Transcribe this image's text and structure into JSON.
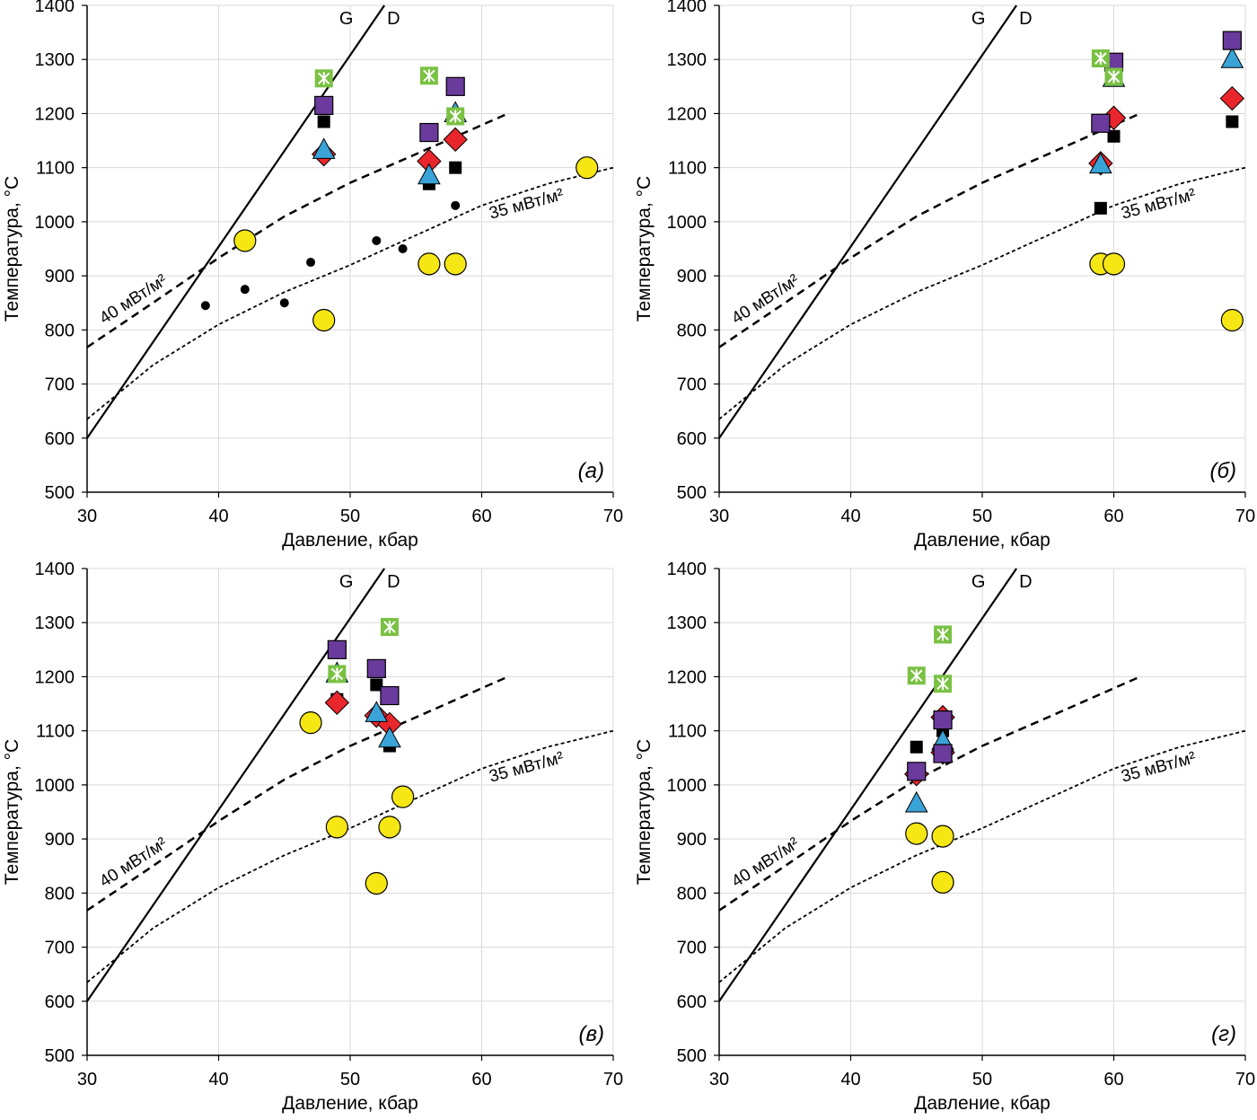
{
  "figure": {
    "xlabel": "Давление, кбар",
    "ylabel": "Температура, °С",
    "xlim": [
      30,
      70
    ],
    "ylim": [
      500,
      1400
    ],
    "xticks": [
      "30",
      "40",
      "50",
      "60",
      "70"
    ],
    "yticks": [
      "500",
      "600",
      "700",
      "800",
      "900",
      "1000",
      "1100",
      "1200",
      "1300",
      "1400"
    ],
    "grid": true
  },
  "chart_data": [
    {
      "type": "scatter",
      "panel_label": "(а)",
      "xlabel": "Давление, кбар",
      "ylabel": "Температура, °С",
      "xlim": [
        30,
        70
      ],
      "ylim": [
        500,
        1400
      ],
      "grid": true,
      "reference_lines": [
        {
          "label_g": "G",
          "label_d": "D",
          "style": "solid",
          "points": [
            [
              30,
              600
            ],
            [
              52.6,
              1400
            ]
          ]
        },
        {
          "label": "40 мВт/м²",
          "style": "dashed",
          "points": [
            [
              30,
              768
            ],
            [
              35,
              850
            ],
            [
              40,
              933
            ],
            [
              45,
              1010
            ],
            [
              50,
              1072
            ],
            [
              55,
              1125
            ],
            [
              62,
              1200
            ]
          ]
        },
        {
          "label": "35 мВт/м²",
          "style": "dotted",
          "points": [
            [
              30,
              635
            ],
            [
              35,
              735
            ],
            [
              40,
              810
            ],
            [
              45,
              870
            ],
            [
              50,
              920
            ],
            [
              55,
              975
            ],
            [
              60,
              1030
            ],
            [
              65,
              1070
            ],
            [
              70,
              1100
            ]
          ]
        }
      ],
      "series": [
        {
          "marker": "circle-yellow",
          "color": "#f5e614",
          "values": [
            [
              42,
              965
            ],
            [
              48,
              818
            ],
            [
              56,
              922
            ],
            [
              58,
              922
            ],
            [
              68,
              1100
            ]
          ]
        },
        {
          "marker": "dot-black",
          "color": "#000000",
          "values": [
            [
              39,
              845
            ],
            [
              42,
              875
            ],
            [
              45,
              850
            ],
            [
              47,
              925
            ],
            [
              52,
              965
            ],
            [
              54,
              950
            ],
            [
              58,
              1030
            ]
          ]
        },
        {
          "marker": "square-black",
          "color": "#000000",
          "values": [
            [
              48,
              1185
            ],
            [
              56,
              1070
            ],
            [
              58,
              1100
            ]
          ]
        },
        {
          "marker": "diamond-red",
          "color": "#e8262b",
          "values": [
            [
              48,
              1125
            ],
            [
              56,
              1112
            ],
            [
              58,
              1152
            ]
          ]
        },
        {
          "marker": "triangle-blue",
          "color": "#3aa3d8",
          "values": [
            [
              48,
              1132
            ],
            [
              56,
              1085
            ],
            [
              58,
              1200
            ]
          ]
        },
        {
          "marker": "square-purple",
          "color": "#6a3a9c",
          "values": [
            [
              48,
              1215
            ],
            [
              56,
              1165
            ],
            [
              58,
              1250
            ]
          ]
        },
        {
          "marker": "square-green-x",
          "color": "#7ac143",
          "values": [
            [
              48,
              1265
            ],
            [
              56,
              1270
            ],
            [
              58,
              1195
            ]
          ]
        }
      ]
    },
    {
      "type": "scatter",
      "panel_label": "(б)",
      "xlabel": "Давление, кбар",
      "ylabel": "Температура, °С",
      "xlim": [
        30,
        70
      ],
      "ylim": [
        500,
        1400
      ],
      "grid": true,
      "reference_lines": [
        {
          "label_g": "G",
          "label_d": "D",
          "style": "solid",
          "points": [
            [
              30,
              600
            ],
            [
              52.6,
              1400
            ]
          ]
        },
        {
          "label": "40 мВт/м²",
          "style": "dashed",
          "points": [
            [
              30,
              768
            ],
            [
              35,
              850
            ],
            [
              40,
              933
            ],
            [
              45,
              1010
            ],
            [
              50,
              1072
            ],
            [
              55,
              1125
            ],
            [
              62,
              1200
            ]
          ]
        },
        {
          "label": "35 мВт/м²",
          "style": "dotted",
          "points": [
            [
              30,
              635
            ],
            [
              35,
              735
            ],
            [
              40,
              810
            ],
            [
              45,
              870
            ],
            [
              50,
              920
            ],
            [
              55,
              975
            ],
            [
              60,
              1030
            ],
            [
              65,
              1070
            ],
            [
              70,
              1100
            ]
          ]
        }
      ],
      "series": [
        {
          "marker": "circle-yellow",
          "color": "#f5e614",
          "values": [
            [
              59,
              922
            ],
            [
              60,
              922
            ],
            [
              69,
              818
            ]
          ]
        },
        {
          "marker": "square-black",
          "color": "#000000",
          "values": [
            [
              59,
              1025
            ],
            [
              60,
              1158
            ],
            [
              69,
              1185
            ]
          ]
        },
        {
          "marker": "diamond-red",
          "color": "#e8262b",
          "values": [
            [
              59,
              1108
            ],
            [
              60,
              1192
            ],
            [
              69,
              1228
            ]
          ]
        },
        {
          "marker": "triangle-blue",
          "color": "#3aa3d8",
          "values": [
            [
              59,
              1105
            ],
            [
              60,
              1265
            ],
            [
              69,
              1300
            ]
          ]
        },
        {
          "marker": "square-purple",
          "color": "#6a3a9c",
          "values": [
            [
              59,
              1182
            ],
            [
              60,
              1295
            ],
            [
              69,
              1335
            ]
          ]
        },
        {
          "marker": "square-green-x",
          "color": "#7ac143",
          "values": [
            [
              59,
              1302
            ],
            [
              60,
              1268
            ]
          ]
        }
      ]
    },
    {
      "type": "scatter",
      "panel_label": "(в)",
      "xlabel": "Давление, кбар",
      "ylabel": "Температура, °С",
      "xlim": [
        30,
        70
      ],
      "ylim": [
        500,
        1400
      ],
      "grid": true,
      "reference_lines": [
        {
          "label_g": "G",
          "label_d": "D",
          "style": "solid",
          "points": [
            [
              30,
              600
            ],
            [
              52.6,
              1400
            ]
          ]
        },
        {
          "label": "40 мВт/м²",
          "style": "dashed",
          "points": [
            [
              30,
              768
            ],
            [
              35,
              850
            ],
            [
              40,
              933
            ],
            [
              45,
              1010
            ],
            [
              50,
              1072
            ],
            [
              55,
              1125
            ],
            [
              62,
              1200
            ]
          ]
        },
        {
          "label": "35 мВт/м²",
          "style": "dotted",
          "points": [
            [
              30,
              635
            ],
            [
              35,
              735
            ],
            [
              40,
              810
            ],
            [
              45,
              870
            ],
            [
              50,
              920
            ],
            [
              55,
              975
            ],
            [
              60,
              1030
            ],
            [
              65,
              1070
            ],
            [
              70,
              1100
            ]
          ]
        }
      ],
      "series": [
        {
          "marker": "circle-yellow",
          "color": "#f5e614",
          "values": [
            [
              47,
              1115
            ],
            [
              49,
              922
            ],
            [
              52,
              818
            ],
            [
              53,
              922
            ],
            [
              54,
              978
            ]
          ]
        },
        {
          "marker": "square-black",
          "color": "#000000",
          "values": [
            [
              49,
              1158
            ],
            [
              52,
              1185
            ],
            [
              53,
              1072
            ]
          ]
        },
        {
          "marker": "diamond-red",
          "color": "#e8262b",
          "values": [
            [
              49,
              1152
            ],
            [
              52,
              1128
            ],
            [
              53,
              1112
            ]
          ]
        },
        {
          "marker": "triangle-blue",
          "color": "#3aa3d8",
          "values": [
            [
              49,
              1205
            ],
            [
              52,
              1132
            ],
            [
              53,
              1085
            ]
          ]
        },
        {
          "marker": "square-purple",
          "color": "#6a3a9c",
          "values": [
            [
              49,
              1250
            ],
            [
              52,
              1215
            ],
            [
              53,
              1165
            ]
          ]
        },
        {
          "marker": "square-green-x",
          "color": "#7ac143",
          "values": [
            [
              49,
              1205
            ],
            [
              53,
              1292
            ]
          ]
        }
      ]
    },
    {
      "type": "scatter",
      "panel_label": "(г)",
      "xlabel": "Давление, кбар",
      "ylabel": "Температура, °С",
      "xlim": [
        30,
        70
      ],
      "ylim": [
        500,
        1400
      ],
      "grid": true,
      "reference_lines": [
        {
          "label_g": "G",
          "label_d": "D",
          "style": "solid",
          "points": [
            [
              30,
              600
            ],
            [
              52.6,
              1400
            ]
          ]
        },
        {
          "label": "40 мВт/м²",
          "style": "dashed",
          "points": [
            [
              30,
              768
            ],
            [
              35,
              850
            ],
            [
              40,
              933
            ],
            [
              45,
              1010
            ],
            [
              50,
              1072
            ],
            [
              55,
              1125
            ],
            [
              62,
              1200
            ]
          ]
        },
        {
          "label": "35 мВт/м²",
          "style": "dotted",
          "points": [
            [
              30,
              635
            ],
            [
              35,
              735
            ],
            [
              40,
              810
            ],
            [
              45,
              870
            ],
            [
              50,
              920
            ],
            [
              55,
              975
            ],
            [
              60,
              1030
            ],
            [
              65,
              1070
            ],
            [
              70,
              1100
            ]
          ]
        }
      ],
      "series": [
        {
          "marker": "circle-yellow",
          "color": "#f5e614",
          "values": [
            [
              45,
              910
            ],
            [
              47,
              905
            ],
            [
              47,
              820
            ]
          ]
        },
        {
          "marker": "square-black",
          "color": "#000000",
          "values": [
            [
              45,
              1070
            ],
            [
              47,
              1100
            ]
          ]
        },
        {
          "marker": "diamond-red",
          "color": "#e8262b",
          "values": [
            [
              45,
              1020
            ],
            [
              47,
              1060
            ],
            [
              47,
              1125
            ]
          ]
        },
        {
          "marker": "triangle-blue",
          "color": "#3aa3d8",
          "values": [
            [
              45,
              965
            ],
            [
              47,
              1080
            ]
          ]
        },
        {
          "marker": "square-purple",
          "color": "#6a3a9c",
          "values": [
            [
              45,
              1025
            ],
            [
              47,
              1058
            ],
            [
              47,
              1120
            ]
          ]
        },
        {
          "marker": "square-green-x",
          "color": "#7ac143",
          "values": [
            [
              45,
              1202
            ],
            [
              47,
              1278
            ],
            [
              47,
              1187
            ]
          ]
        }
      ]
    }
  ]
}
